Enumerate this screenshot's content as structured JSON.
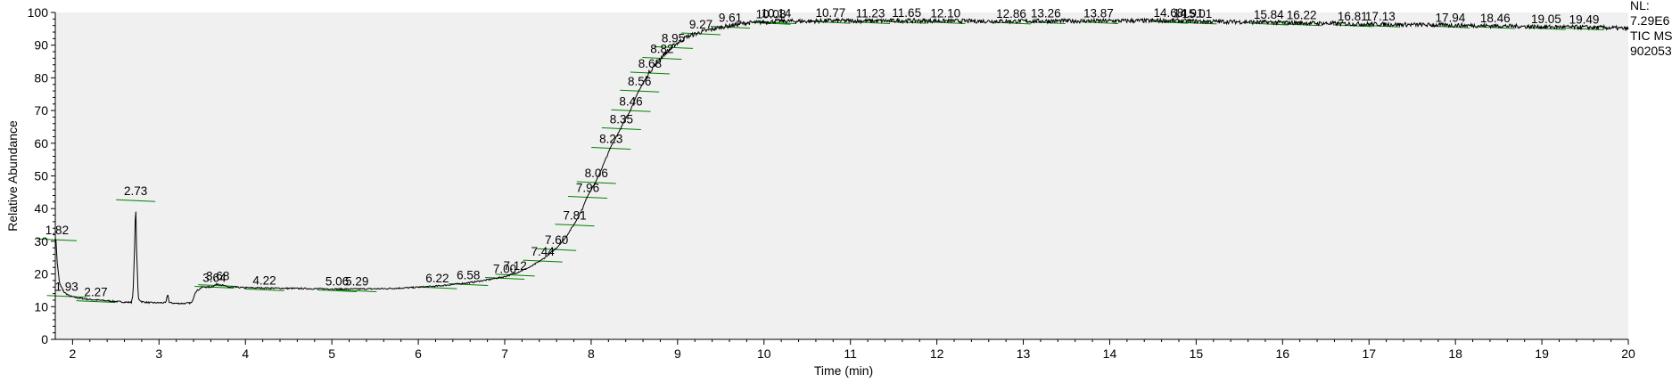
{
  "chart_data": {
    "type": "line",
    "xlabel": "Time (min)",
    "ylabel": "Relative Abundance",
    "xlim": [
      1.8,
      20
    ],
    "ylim": [
      0,
      100
    ],
    "x_ticks": [
      2,
      3,
      4,
      5,
      6,
      7,
      8,
      9,
      10,
      11,
      12,
      13,
      14,
      15,
      16,
      17,
      18,
      19,
      20
    ],
    "y_ticks": [
      0,
      10,
      20,
      30,
      40,
      50,
      60,
      70,
      80,
      90,
      100
    ],
    "grid": false,
    "header_lines": [
      "NL:",
      "7.29E6",
      "TIC  MS",
      "902053"
    ],
    "series": [
      {
        "color": "#000000",
        "x": [
          1.8,
          1.81,
          1.82,
          1.85,
          1.9,
          1.95,
          2.0,
          2.1,
          2.2,
          2.3,
          2.4,
          2.5,
          2.6,
          2.68,
          2.7,
          2.72,
          2.73,
          2.74,
          2.76,
          2.8,
          2.9,
          3.0,
          3.08,
          3.1,
          3.12,
          3.2,
          3.3,
          3.38,
          3.42,
          3.5,
          3.6,
          3.64,
          3.68,
          3.8,
          4.0,
          4.22,
          4.5,
          4.8,
          5.06,
          5.29,
          5.6,
          5.9,
          6.22,
          6.58,
          6.8,
          7.0,
          7.12,
          7.3,
          7.44,
          7.6,
          7.7,
          7.81,
          7.9,
          7.96,
          8.06,
          8.15,
          8.23,
          8.35,
          8.46,
          8.56,
          8.68,
          8.82,
          8.95,
          9.1,
          9.27,
          9.45,
          9.61,
          9.8,
          10.08,
          10.14,
          10.5,
          10.77,
          11.23,
          11.65,
          12.1,
          12.86,
          13.26,
          13.87,
          14.68,
          14.91,
          15.01,
          15.84,
          16.22,
          16.81,
          17.13,
          17.94,
          18.46,
          19.05,
          19.49,
          19.8,
          20.0
        ],
        "y": [
          31,
          30,
          24,
          17,
          14.5,
          13.5,
          13,
          12.5,
          12.2,
          12,
          11.8,
          11.6,
          11.4,
          11.3,
          14,
          30,
          43,
          28,
          12.5,
          11.5,
          11.2,
          11.2,
          11.2,
          14,
          11.2,
          11,
          11,
          11.2,
          14.5,
          16,
          16,
          16.5,
          17,
          16,
          15.8,
          15.7,
          15.6,
          15.5,
          15.4,
          15.4,
          15.5,
          15.8,
          16.3,
          17.3,
          18.2,
          19.2,
          20.2,
          22.2,
          24.5,
          28,
          31,
          35.5,
          40,
          44,
          48.5,
          54,
          59,
          65,
          70.5,
          76.5,
          82,
          86.5,
          89.8,
          92.5,
          94,
          95.2,
          96,
          96.8,
          97.2,
          97.4,
          97.3,
          97.5,
          97.4,
          97.5,
          97.4,
          97.3,
          97.4,
          97.4,
          97.5,
          97.4,
          97.3,
          97.0,
          96.8,
          96.5,
          96.4,
          96.1,
          95.9,
          95.6,
          95.5,
          95.3,
          95.0
        ]
      }
    ],
    "peak_labels": [
      {
        "label": "1.82",
        "x": 1.82,
        "y": 31
      },
      {
        "label": "1.93",
        "x": 1.93,
        "y": 13.7
      },
      {
        "label": "2.27",
        "x": 2.27,
        "y": 12.1
      },
      {
        "label": "2.73",
        "x": 2.73,
        "y": 43
      },
      {
        "label": "3.64",
        "x": 3.64,
        "y": 16.5
      },
      {
        "label": "3.68",
        "x": 3.68,
        "y": 17
      },
      {
        "label": "4.22",
        "x": 4.22,
        "y": 15.7
      },
      {
        "label": "5.06",
        "x": 5.06,
        "y": 15.4
      },
      {
        "label": "5.29",
        "x": 5.29,
        "y": 15.4
      },
      {
        "label": "6.22",
        "x": 6.22,
        "y": 16.3
      },
      {
        "label": "6.58",
        "x": 6.58,
        "y": 17.3
      },
      {
        "label": "7.00",
        "x": 7.0,
        "y": 19.2
      },
      {
        "label": "7.12",
        "x": 7.12,
        "y": 20.2
      },
      {
        "label": "7.44",
        "x": 7.44,
        "y": 24.5
      },
      {
        "label": "7.60",
        "x": 7.6,
        "y": 28
      },
      {
        "label": "7.81",
        "x": 7.81,
        "y": 35.5
      },
      {
        "label": "7.96",
        "x": 7.96,
        "y": 44
      },
      {
        "label": "8.06",
        "x": 8.06,
        "y": 48.5
      },
      {
        "label": "8.23",
        "x": 8.23,
        "y": 59
      },
      {
        "label": "8.35",
        "x": 8.35,
        "y": 65
      },
      {
        "label": "8.46",
        "x": 8.46,
        "y": 70.5
      },
      {
        "label": "8.56",
        "x": 8.56,
        "y": 76.5
      },
      {
        "label": "8.68",
        "x": 8.68,
        "y": 82
      },
      {
        "label": "8.82",
        "x": 8.82,
        "y": 86.5
      },
      {
        "label": "8.95",
        "x": 8.95,
        "y": 89.8
      },
      {
        "label": "9.27",
        "x": 9.27,
        "y": 94
      },
      {
        "label": "9.61",
        "x": 9.61,
        "y": 96
      },
      {
        "label": "10.08",
        "x": 10.08,
        "y": 97.2
      },
      {
        "label": "10.14",
        "x": 10.14,
        "y": 97.4
      },
      {
        "label": "10.77",
        "x": 10.77,
        "y": 97.5
      },
      {
        "label": "11.23",
        "x": 11.23,
        "y": 97.4
      },
      {
        "label": "11.65",
        "x": 11.65,
        "y": 97.5
      },
      {
        "label": "12.10",
        "x": 12.1,
        "y": 97.4
      },
      {
        "label": "12.86",
        "x": 12.86,
        "y": 97.3
      },
      {
        "label": "13.26",
        "x": 13.26,
        "y": 97.4
      },
      {
        "label": "13.87",
        "x": 13.87,
        "y": 97.4
      },
      {
        "label": "14.68",
        "x": 14.68,
        "y": 97.5
      },
      {
        "label": "14.91",
        "x": 14.91,
        "y": 97.4
      },
      {
        "label": "15.01",
        "x": 15.01,
        "y": 97.3
      },
      {
        "label": "15.84",
        "x": 15.84,
        "y": 97.0
      },
      {
        "label": "16.22",
        "x": 16.22,
        "y": 96.8
      },
      {
        "label": "16.81",
        "x": 16.81,
        "y": 96.5
      },
      {
        "label": "17.13",
        "x": 17.13,
        "y": 96.4
      },
      {
        "label": "17.94",
        "x": 17.94,
        "y": 96.1
      },
      {
        "label": "18.46",
        "x": 18.46,
        "y": 95.9
      },
      {
        "label": "19.05",
        "x": 19.05,
        "y": 95.6
      },
      {
        "label": "19.49",
        "x": 19.49,
        "y": 95.5
      }
    ],
    "colors": {
      "background": "#f0f0f0",
      "trace": "#000000",
      "baseline": "#008000",
      "axis": "#000000"
    }
  }
}
